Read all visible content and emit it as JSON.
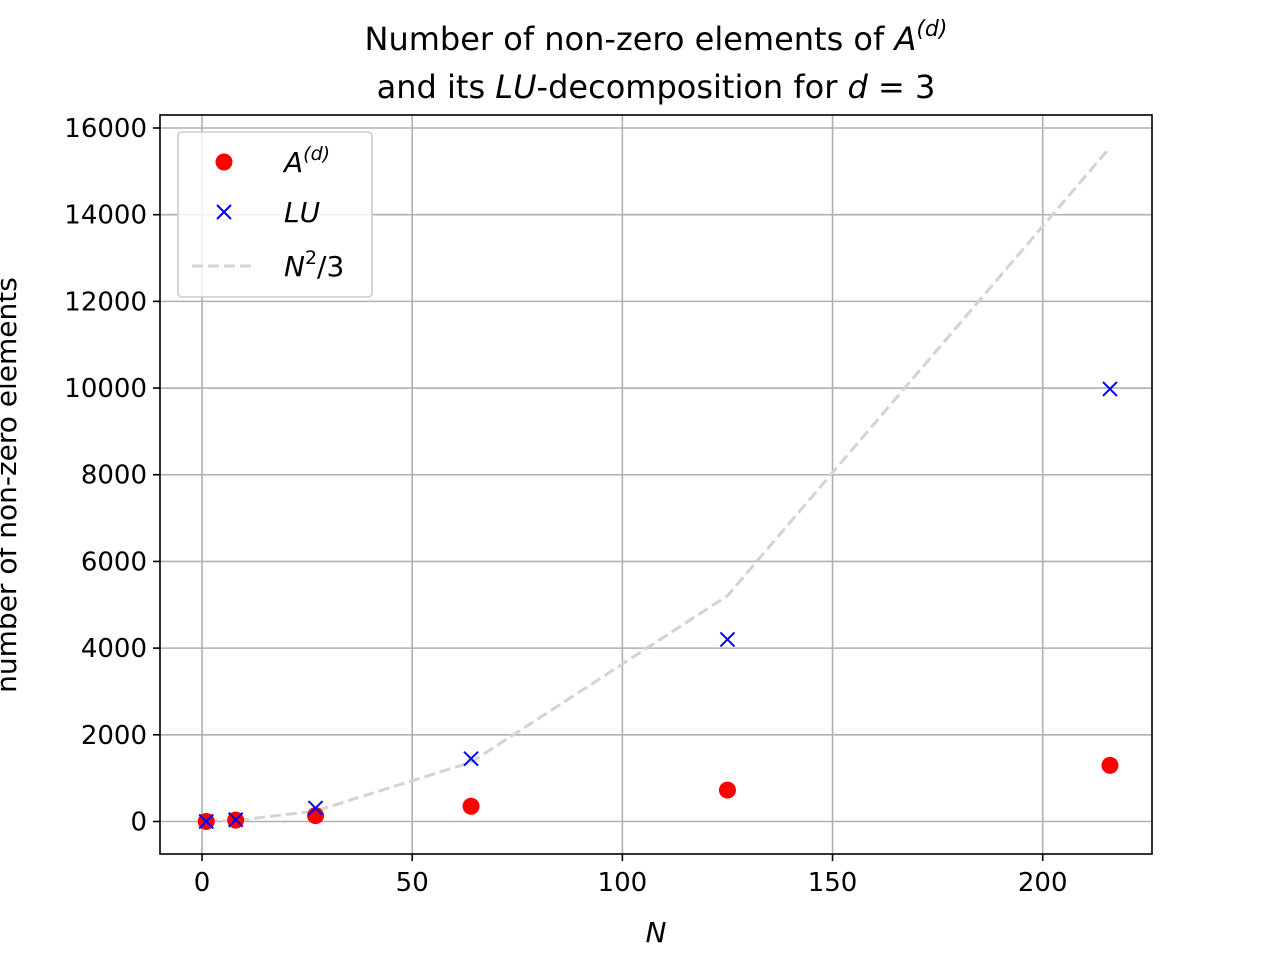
{
  "chart_data": {
    "type": "scatter",
    "title": {
      "line1_prefix": "Number of non-zero elements of ",
      "line1_var": "A",
      "line1_sup": "(d)",
      "line2_prefix": "and its ",
      "line2_var": "LU",
      "line2_suffix": "-decomposition for ",
      "line2_d": "d",
      "line2_eq": " = 3"
    },
    "xlabel": "N",
    "ylabel": "number of non-zero elements",
    "xlim": [
      -10,
      226
    ],
    "ylim": [
      -750,
      16300
    ],
    "xticks": [
      0,
      50,
      100,
      150,
      200
    ],
    "yticks": [
      0,
      2000,
      4000,
      6000,
      8000,
      10000,
      12000,
      14000,
      16000
    ],
    "grid": true,
    "legend_position": "top-left",
    "series": [
      {
        "name": "A^(d)",
        "legend": {
          "base": "A",
          "sup": "(d)"
        },
        "marker": "circle",
        "color": "#ff0000",
        "x": [
          1,
          8,
          27,
          64,
          125,
          216
        ],
        "y": [
          1,
          32,
          135,
          352,
          725,
          1296
        ]
      },
      {
        "name": "LU",
        "legend": {
          "base": "LU",
          "sup": ""
        },
        "marker": "x",
        "color": "#0000ff",
        "x": [
          1,
          8,
          27,
          64,
          125,
          216
        ],
        "y": [
          1,
          40,
          310,
          1450,
          4200,
          9980
        ]
      },
      {
        "name": "N^2/3",
        "legend": {
          "base": "N",
          "sup": "2",
          "suffix": "/3"
        },
        "marker": "dashed-line",
        "color": "#d3d3d3",
        "x": [
          1,
          8,
          27,
          64,
          125,
          216
        ],
        "y": [
          0.33,
          21.3,
          243,
          1365.3,
          5208.3,
          15552
        ]
      }
    ]
  }
}
